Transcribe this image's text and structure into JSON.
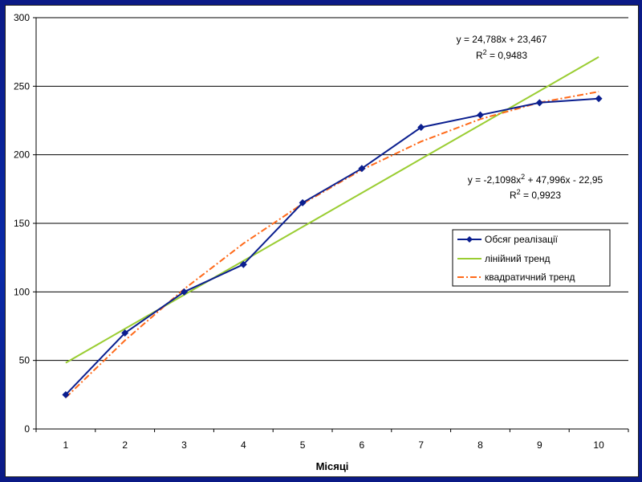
{
  "chart_data": {
    "type": "line",
    "xlabel": "Місяці",
    "ylabel": "",
    "x": [
      1,
      2,
      3,
      4,
      5,
      6,
      7,
      8,
      9,
      10
    ],
    "ylim": [
      0,
      300
    ],
    "yticks": [
      0,
      50,
      100,
      150,
      200,
      250,
      300
    ],
    "grid": true,
    "legend_position": "right",
    "series": [
      {
        "name": "Обсяг реалізації",
        "values": [
          25,
          70,
          100,
          120,
          165,
          190,
          220,
          229,
          238,
          241
        ],
        "color": "#0b1f8f",
        "style": "solid-diamond"
      },
      {
        "name": "лінійний тренд",
        "values": [
          48.255,
          73.043,
          97.831,
          122.619,
          147.407,
          172.195,
          196.983,
          221.771,
          246.559,
          271.347
        ],
        "color": "#9acd32",
        "style": "solid"
      },
      {
        "name": "квадратичний тренд",
        "values": [
          22.936,
          64.602,
          102.048,
          135.275,
          164.282,
          189.07,
          209.638,
          225.987,
          238.116,
          246.026
        ],
        "color": "#ff6a1a",
        "style": "dash-dot"
      }
    ],
    "annotations": [
      {
        "line1": "y = 24,788x + 23,467",
        "line2": "R",
        "line2_sup": "2",
        "line2_tail": " = 0,9483"
      },
      {
        "line1_a": "y = -2,1098x",
        "line1_sup": "2",
        "line1_b": " + 47,996x - 22,95",
        "line2": "R",
        "line2_sup": "2",
        "line2_tail": " = 0,9923"
      }
    ]
  }
}
